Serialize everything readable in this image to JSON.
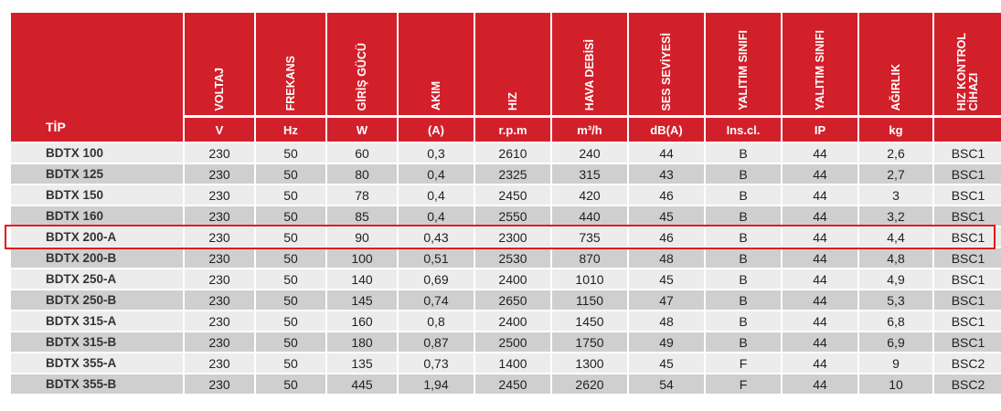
{
  "table": {
    "header": {
      "tip": "TİP",
      "columns": [
        {
          "label": "VOLTAJ",
          "unit": "V"
        },
        {
          "label": "FREKANS",
          "unit": "Hz"
        },
        {
          "label": "GİRİŞ GÜCÜ",
          "unit": "W"
        },
        {
          "label": "AKIM",
          "unit": "(A)"
        },
        {
          "label": "HIZ",
          "unit": "r.p.m"
        },
        {
          "label": "HAVA DEBİSİ",
          "unit": "m³/h"
        },
        {
          "label": "SES SEVİYESİ",
          "unit": "dB(A)"
        },
        {
          "label": "YALITIM SINIFI",
          "unit": "Ins.cl."
        },
        {
          "label": "YALITIM SINIFI",
          "unit": "IP"
        },
        {
          "label": "AĞIRLIK",
          "unit": "kg"
        },
        {
          "label": "HIZ KONTROL\nCİHAZI",
          "unit": ""
        }
      ]
    },
    "rows": [
      {
        "tip": "BDTX 100",
        "cells": [
          "230",
          "50",
          "60",
          "0,3",
          "2610",
          "240",
          "44",
          "B",
          "44",
          "2,6",
          "BSC1"
        ]
      },
      {
        "tip": "BDTX 125",
        "cells": [
          "230",
          "50",
          "80",
          "0,4",
          "2325",
          "315",
          "43",
          "B",
          "44",
          "2,7",
          "BSC1"
        ]
      },
      {
        "tip": "BDTX 150",
        "cells": [
          "230",
          "50",
          "78",
          "0,4",
          "2450",
          "420",
          "46",
          "B",
          "44",
          "3",
          "BSC1"
        ]
      },
      {
        "tip": "BDTX 160",
        "cells": [
          "230",
          "50",
          "85",
          "0,4",
          "2550",
          "440",
          "45",
          "B",
          "44",
          "3,2",
          "BSC1"
        ]
      },
      {
        "tip": "BDTX 200-A",
        "cells": [
          "230",
          "50",
          "90",
          "0,43",
          "2300",
          "735",
          "46",
          "B",
          "44",
          "4,4",
          "BSC1"
        ]
      },
      {
        "tip": "BDTX 200-B",
        "cells": [
          "230",
          "50",
          "100",
          "0,51",
          "2530",
          "870",
          "48",
          "B",
          "44",
          "4,8",
          "BSC1"
        ]
      },
      {
        "tip": "BDTX 250-A",
        "cells": [
          "230",
          "50",
          "140",
          "0,69",
          "2400",
          "1010",
          "45",
          "B",
          "44",
          "4,9",
          "BSC1"
        ]
      },
      {
        "tip": "BDTX 250-B",
        "cells": [
          "230",
          "50",
          "145",
          "0,74",
          "2650",
          "1150",
          "47",
          "B",
          "44",
          "5,3",
          "BSC1"
        ]
      },
      {
        "tip": "BDTX 315-A",
        "cells": [
          "230",
          "50",
          "160",
          "0,8",
          "2400",
          "1450",
          "48",
          "B",
          "44",
          "6,8",
          "BSC1"
        ]
      },
      {
        "tip": "BDTX 315-B",
        "cells": [
          "230",
          "50",
          "180",
          "0,87",
          "2500",
          "1750",
          "49",
          "B",
          "44",
          "6,9",
          "BSC1"
        ]
      },
      {
        "tip": "BDTX 355-A",
        "cells": [
          "230",
          "50",
          "135",
          "0,73",
          "1400",
          "1300",
          "45",
          "F",
          "44",
          "9",
          "BSC2"
        ]
      },
      {
        "tip": "BDTX 355-B",
        "cells": [
          "230",
          "50",
          "445",
          "1,94",
          "2450",
          "2620",
          "54",
          "F",
          "44",
          "10",
          "BSC2"
        ]
      }
    ],
    "highlighted_row": "BDTX 200-A"
  },
  "colors": {
    "header_red": "#d2202b",
    "row_light": "#ececec",
    "row_dark": "#cfcfcf",
    "highlight_border": "#e2161c"
  }
}
